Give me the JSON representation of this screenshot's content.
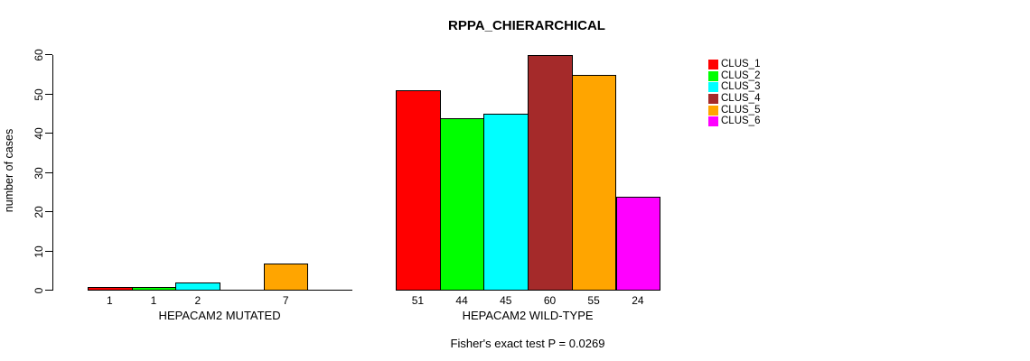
{
  "chart_data": {
    "type": "bar",
    "title": "RPPA_CHIERARCHICAL",
    "ylabel": "number of cases",
    "xlabel": "",
    "ylim": [
      0,
      60
    ],
    "yticks": [
      0,
      10,
      20,
      30,
      40,
      50,
      60
    ],
    "grid": false,
    "legend_position": "right",
    "categories": [
      "HEPACAM2 MUTATED",
      "HEPACAM2 WILD-TYPE"
    ],
    "series": [
      {
        "name": "CLUS_1",
        "color": "#FF0000",
        "values": [
          1,
          51
        ]
      },
      {
        "name": "CLUS_2",
        "color": "#00FF00",
        "values": [
          1,
          44
        ]
      },
      {
        "name": "CLUS_3",
        "color": "#00FFFF",
        "values": [
          2,
          45
        ]
      },
      {
        "name": "CLUS_4",
        "color": "#A52A2A",
        "values": [
          0,
          60
        ]
      },
      {
        "name": "CLUS_5",
        "color": "#FFA500",
        "values": [
          7,
          55
        ]
      },
      {
        "name": "CLUS_6",
        "color": "#FF00FF",
        "values": [
          0,
          24
        ]
      }
    ],
    "bar_value_labels": [
      [
        "1",
        "1",
        "2",
        "",
        "7",
        ""
      ],
      [
        "51",
        "44",
        "45",
        "60",
        "55",
        "24"
      ]
    ],
    "footnote": "Fisher's exact test P = 0.0269",
    "axis_color": "#000000",
    "background_color": "#FFFFFF"
  }
}
